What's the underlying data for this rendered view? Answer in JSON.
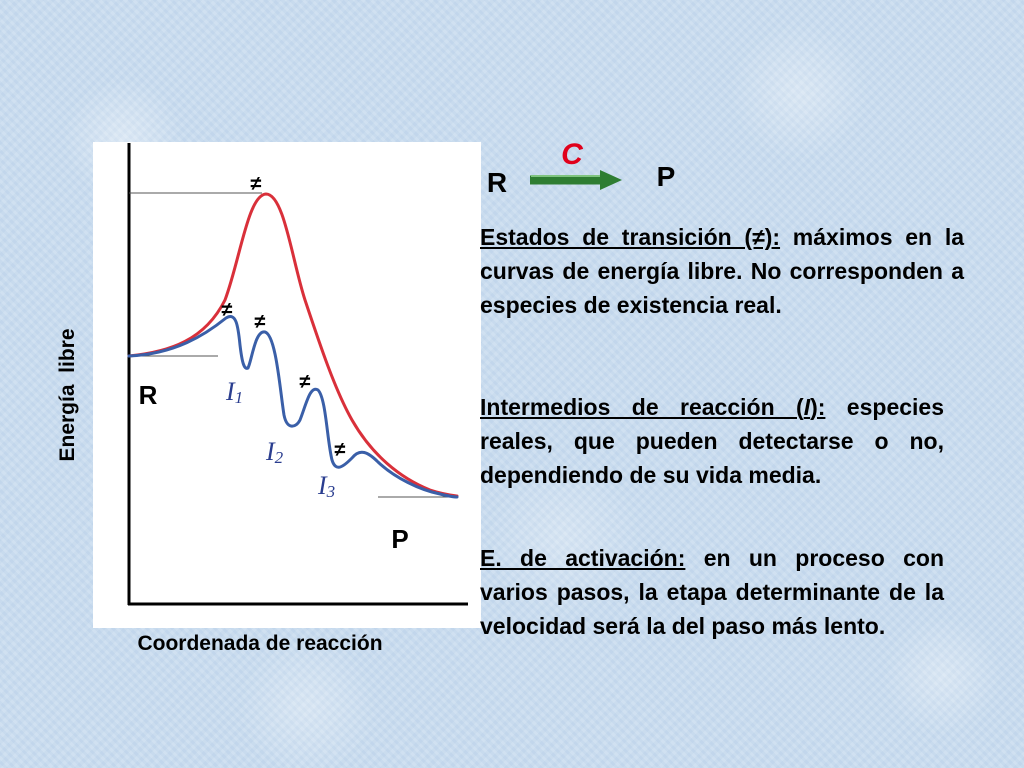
{
  "reaction": {
    "reactant": "R",
    "product": "P",
    "catalyst": "C"
  },
  "diagram": {
    "y_axis_label": "Energía  libre",
    "x_axis_label": "Coordenada de reacción",
    "reactant_label": "R",
    "product_label": "P",
    "transition_symbol": "≠",
    "intermediates": [
      {
        "letter": "I",
        "sub": "1"
      },
      {
        "letter": "I",
        "sub": "2"
      },
      {
        "letter": "I",
        "sub": "3"
      }
    ],
    "colors": {
      "uncatalyzed_curve": "#d9303a",
      "catalyzed_curve": "#3a5fa8",
      "arrow": "#2e7d32",
      "catalyst_label": "#e0001b",
      "intermediate_label": "#2a3d8f"
    }
  },
  "paragraphs": {
    "transition": {
      "term": "Estados de transición (≠):",
      "text": " máximos en la curvas de energía libre. No corresponden a especies de existencia real."
    },
    "intermediates": {
      "term_pre": "Intermedios de reacción (",
      "term_italic": "I",
      "term_post": "):",
      "text": " especies reales, que pueden detectarse o no, dependiendo de su vida media."
    },
    "activation": {
      "term": "E. de activación:",
      "text": " en un proceso con varios pasos, la etapa determinante de la velocidad será la del paso más lento."
    }
  }
}
